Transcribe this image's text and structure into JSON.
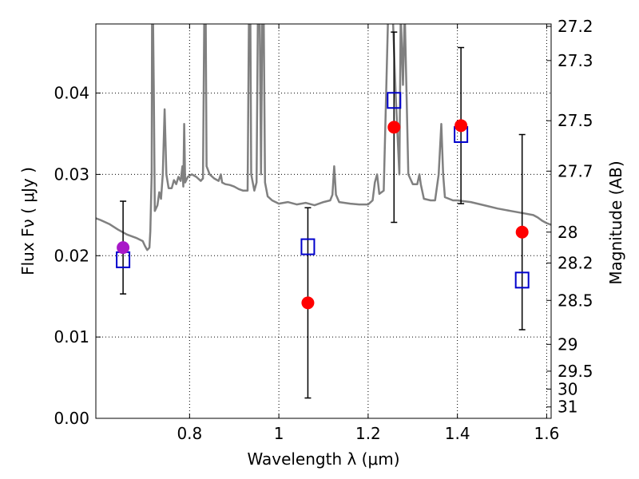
{
  "chart_data": {
    "type": "scatter",
    "xlabel": "Wavelength  λ (μm)",
    "ylabel": "Flux  Fν  ( μJy )",
    "ylabel_right": "Magnitude (AB)",
    "xlim": [
      0.59,
      1.61
    ],
    "ylim": [
      0.0,
      0.0485
    ],
    "grid": true,
    "x_ticks": [
      {
        "value": 0.8,
        "label": "0.8"
      },
      {
        "value": 1.0,
        "label": "1"
      },
      {
        "value": 1.2,
        "label": "1.2"
      },
      {
        "value": 1.4,
        "label": "1.4"
      },
      {
        "value": 1.6,
        "label": "1.6"
      }
    ],
    "y_ticks": [
      {
        "value": 0.0,
        "label": "0.00"
      },
      {
        "value": 0.01,
        "label": "0.01"
      },
      {
        "value": 0.02,
        "label": "0.02"
      },
      {
        "value": 0.03,
        "label": "0.03"
      },
      {
        "value": 0.04,
        "label": "0.04"
      }
    ],
    "right_ticks": [
      {
        "label": "27.2",
        "flux": 0.0482
      },
      {
        "label": "27.3",
        "flux": 0.044
      },
      {
        "label": "27.5",
        "flux": 0.0366
      },
      {
        "label": "27.7",
        "flux": 0.0304
      },
      {
        "label": "28",
        "flux": 0.0229
      },
      {
        "label": "28.2",
        "flux": 0.0191
      },
      {
        "label": "28.5",
        "flux": 0.0145
      },
      {
        "label": "29",
        "flux": 0.0091
      },
      {
        "label": "29.5",
        "flux": 0.0058
      },
      {
        "label": "30",
        "flux": 0.0036
      },
      {
        "label": "31",
        "flux": 0.0014
      }
    ],
    "spectrum": {
      "color": "#808080",
      "points": [
        [
          0.59,
          0.0246
        ],
        [
          0.6,
          0.0244
        ],
        [
          0.62,
          0.0239
        ],
        [
          0.64,
          0.0232
        ],
        [
          0.66,
          0.0226
        ],
        [
          0.68,
          0.0222
        ],
        [
          0.695,
          0.0218
        ],
        [
          0.7,
          0.0212
        ],
        [
          0.705,
          0.0207
        ],
        [
          0.71,
          0.021
        ],
        [
          0.712,
          0.023
        ],
        [
          0.715,
          0.03
        ],
        [
          0.716,
          0.05
        ],
        [
          0.718,
          0.05
        ],
        [
          0.72,
          0.04
        ],
        [
          0.722,
          0.0255
        ],
        [
          0.728,
          0.0262
        ],
        [
          0.732,
          0.0278
        ],
        [
          0.736,
          0.027
        ],
        [
          0.74,
          0.03
        ],
        [
          0.744,
          0.038
        ],
        [
          0.748,
          0.03
        ],
        [
          0.753,
          0.0283
        ],
        [
          0.76,
          0.0283
        ],
        [
          0.765,
          0.0293
        ],
        [
          0.77,
          0.0288
        ],
        [
          0.775,
          0.0297
        ],
        [
          0.78,
          0.0292
        ],
        [
          0.784,
          0.031
        ],
        [
          0.786,
          0.0285
        ],
        [
          0.788,
          0.0362
        ],
        [
          0.79,
          0.029
        ],
        [
          0.796,
          0.0297
        ],
        [
          0.805,
          0.03
        ],
        [
          0.815,
          0.0297
        ],
        [
          0.825,
          0.0292
        ],
        [
          0.83,
          0.0295
        ],
        [
          0.833,
          0.05
        ],
        [
          0.836,
          0.05
        ],
        [
          0.838,
          0.031
        ],
        [
          0.845,
          0.03
        ],
        [
          0.855,
          0.0295
        ],
        [
          0.865,
          0.0292
        ],
        [
          0.87,
          0.03
        ],
        [
          0.873,
          0.029
        ],
        [
          0.88,
          0.0288
        ],
        [
          0.89,
          0.0287
        ],
        [
          0.9,
          0.0285
        ],
        [
          0.91,
          0.0282
        ],
        [
          0.92,
          0.028
        ],
        [
          0.93,
          0.028
        ],
        [
          0.933,
          0.05
        ],
        [
          0.936,
          0.05
        ],
        [
          0.938,
          0.03
        ],
        [
          0.945,
          0.028
        ],
        [
          0.95,
          0.029
        ],
        [
          0.953,
          0.05
        ],
        [
          0.957,
          0.05
        ],
        [
          0.96,
          0.03
        ],
        [
          0.963,
          0.05
        ],
        [
          0.966,
          0.05
        ],
        [
          0.969,
          0.029
        ],
        [
          0.975,
          0.0273
        ],
        [
          0.985,
          0.0268
        ],
        [
          1.0,
          0.0264
        ],
        [
          1.02,
          0.0266
        ],
        [
          1.04,
          0.0263
        ],
        [
          1.06,
          0.0265
        ],
        [
          1.08,
          0.0262
        ],
        [
          1.1,
          0.0266
        ],
        [
          1.115,
          0.0268
        ],
        [
          1.12,
          0.0275
        ],
        [
          1.124,
          0.031
        ],
        [
          1.128,
          0.0275
        ],
        [
          1.135,
          0.0266
        ],
        [
          1.16,
          0.0264
        ],
        [
          1.18,
          0.0263
        ],
        [
          1.2,
          0.0263
        ],
        [
          1.21,
          0.0268
        ],
        [
          1.215,
          0.029
        ],
        [
          1.22,
          0.03
        ],
        [
          1.225,
          0.0276
        ],
        [
          1.235,
          0.028
        ],
        [
          1.245,
          0.05
        ],
        [
          1.255,
          0.05
        ],
        [
          1.262,
          0.0395
        ],
        [
          1.27,
          0.03
        ],
        [
          1.273,
          0.05
        ],
        [
          1.278,
          0.041
        ],
        [
          1.282,
          0.05
        ],
        [
          1.29,
          0.03
        ],
        [
          1.3,
          0.0288
        ],
        [
          1.31,
          0.0288
        ],
        [
          1.315,
          0.03
        ],
        [
          1.318,
          0.0288
        ],
        [
          1.325,
          0.027
        ],
        [
          1.34,
          0.0268
        ],
        [
          1.35,
          0.0268
        ],
        [
          1.358,
          0.03
        ],
        [
          1.364,
          0.0362
        ],
        [
          1.368,
          0.03
        ],
        [
          1.372,
          0.0272
        ],
        [
          1.39,
          0.0268
        ],
        [
          1.4,
          0.0268
        ],
        [
          1.43,
          0.0266
        ],
        [
          1.46,
          0.0262
        ],
        [
          1.49,
          0.0258
        ],
        [
          1.52,
          0.0255
        ],
        [
          1.55,
          0.0252
        ],
        [
          1.57,
          0.025
        ],
        [
          1.58,
          0.0247
        ],
        [
          1.59,
          0.0243
        ],
        [
          1.6,
          0.024
        ],
        [
          1.61,
          0.0238
        ]
      ]
    },
    "model_points": {
      "marker": "open-square",
      "color": "#0000cc",
      "x": [
        0.651,
        1.065,
        1.258,
        1.408,
        1.545
      ],
      "y": [
        0.0195,
        0.0211,
        0.0391,
        0.0349,
        0.017
      ]
    },
    "observed_points": {
      "marker": "filled-circle",
      "x": [
        0.651,
        1.065,
        1.258,
        1.408,
        1.545
      ],
      "y": [
        0.021,
        0.0142,
        0.0358,
        0.036,
        0.0229
      ],
      "yerr_low": [
        0.0153,
        0.0025,
        0.0241,
        0.0264,
        0.0109
      ],
      "yerr_high": [
        0.0267,
        0.0259,
        0.0475,
        0.0456,
        0.0349
      ],
      "colors": [
        "#a818c8",
        "#ff0000",
        "#ff0000",
        "#ff0000",
        "#ff0000"
      ],
      "errorbar_color": "#000000"
    }
  }
}
